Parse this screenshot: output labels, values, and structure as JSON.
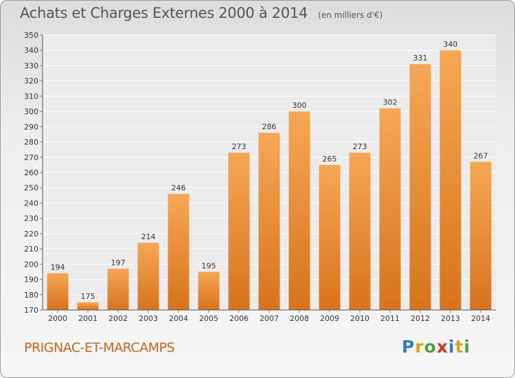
{
  "title": "Achats et Charges Externes 2000 à 2014",
  "subtitle": "(en milliers d'€)",
  "commune": "PRIGNAC-ET-MARCAMPS",
  "logo": {
    "text": "Proxiti",
    "colors": [
      "#2f7fc2",
      "#e0a114",
      "#4da33b",
      "#d8332a",
      "#2f7fc2",
      "#e0a114",
      "#4da33b"
    ]
  },
  "colors": {
    "bar_light": "#f6a754",
    "bar_dark": "#d8731d",
    "accent_text": "#c8641e"
  },
  "chart_data": {
    "type": "bar",
    "title": "Achats et Charges Externes 2000 à 2014",
    "subtitle": "(en milliers d'€)",
    "categories": [
      "2000",
      "2001",
      "2002",
      "2003",
      "2004",
      "2005",
      "2006",
      "2007",
      "2008",
      "2009",
      "2010",
      "2011",
      "2012",
      "2013",
      "2014"
    ],
    "values": [
      194,
      175,
      197,
      214,
      246,
      195,
      273,
      286,
      300,
      265,
      273,
      302,
      331,
      340,
      267
    ],
    "ylim": [
      170,
      350
    ],
    "yticks": [
      170,
      180,
      190,
      200,
      210,
      220,
      230,
      240,
      250,
      260,
      270,
      280,
      290,
      300,
      310,
      320,
      330,
      340,
      350
    ],
    "grid": true,
    "xlabel": "",
    "ylabel": ""
  }
}
